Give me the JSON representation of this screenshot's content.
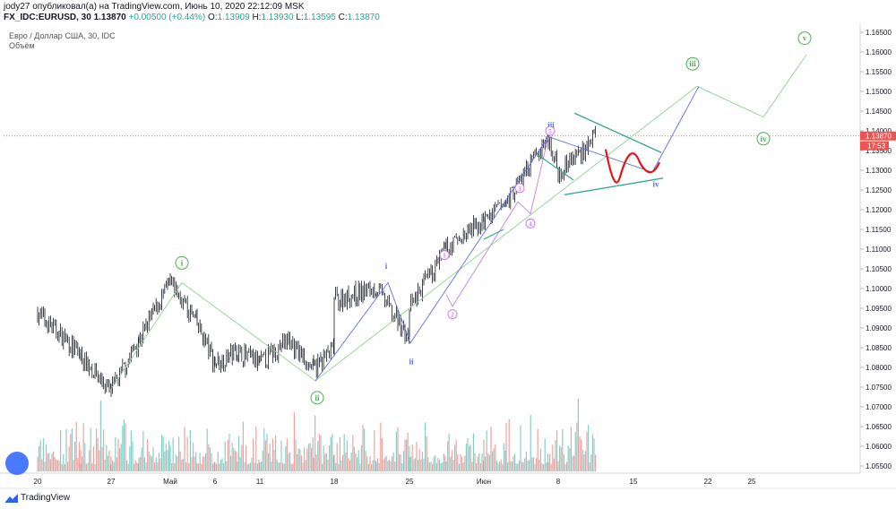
{
  "header": {
    "line1": "jody27 опубликовал(а) на TradingView.com, Июнь 10, 2020 22:12:09 MSK",
    "symbol": "FX_IDC:EURUSD, 30",
    "price": "1.13870",
    "change": "+0.00500 (+0.44%)",
    "o_label": "O:",
    "o_val": "1.13909",
    "h_label": "H:",
    "h_val": "1.13930",
    "l_label": "L:",
    "l_val": "1.13595",
    "c_label": "C:",
    "c_val": "1.13870"
  },
  "pane": {
    "title": "Евро / Доллар США, 30, IDC",
    "volume_label": "Объём"
  },
  "footer": {
    "brand": "TradingView"
  },
  "colors": {
    "up": "#26a69a",
    "down": "#ef5350",
    "candle": "#131722",
    "wave_green": "#8fd18f",
    "wave_blue": "#5a6ee0",
    "wave_purple": "#c77de8",
    "channel": "#3aa896",
    "forecast": "#e0161a",
    "price_line": "#e0561a"
  },
  "chart_data": {
    "type": "candlestick",
    "symbol": "EURUSD",
    "timeframe": "30",
    "y_axis": {
      "ticks": [
        "1.16500",
        "1.16000",
        "1.15500",
        "1.15000",
        "1.14500",
        "1.14000",
        "1.13500",
        "1.13000",
        "1.12500",
        "1.12000",
        "1.11500",
        "1.11000",
        "1.10500",
        "1.10000",
        "1.09500",
        "1.09000",
        "1.08500",
        "1.08000",
        "1.07500",
        "1.07000",
        "1.06500",
        "1.06000",
        "1.05500"
      ],
      "range": [
        1.0535,
        1.168
      ]
    },
    "x_axis": {
      "ticks": [
        "20",
        "27",
        "Май",
        "6",
        "11",
        "18",
        "25",
        "Июн",
        "8",
        "15",
        "22",
        "25"
      ]
    },
    "last_price": "1.13870",
    "countdown": "17:53",
    "price_path": [
      {
        "x": "20",
        "y": 1.094
      },
      {
        "x": "24",
        "y": 1.083
      },
      {
        "x": "27",
        "y": 1.074
      },
      {
        "x": "29",
        "y": 1.087
      },
      {
        "x": "Май",
        "y": 1.1015
      },
      {
        "x": "4",
        "y": 1.091
      },
      {
        "x": "6",
        "y": 1.081
      },
      {
        "x": "8",
        "y": 1.084
      },
      {
        "x": "11",
        "y": 1.081
      },
      {
        "x": "13",
        "y": 1.087
      },
      {
        "x": "15",
        "y": 1.0795
      },
      {
        "x": "18",
        "y": 1.085
      },
      {
        "x": "20",
        "y": 1.097
      },
      {
        "x": "22",
        "y": 1.1
      },
      {
        "x": "25",
        "y": 1.087
      },
      {
        "x": "27",
        "y": 1.095
      },
      {
        "x": "29",
        "y": 1.11
      },
      {
        "x": "Июн",
        "y": 1.117
      },
      {
        "x": "3",
        "y": 1.122
      },
      {
        "x": "5",
        "y": 1.1385
      },
      {
        "x": "8",
        "y": 1.1295
      },
      {
        "x": "10",
        "y": 1.1387
      }
    ],
    "wave_labels": [
      {
        "label": "i",
        "degree": "minor",
        "date": "Май"
      },
      {
        "label": "ii",
        "degree": "minor",
        "date": "15"
      },
      {
        "label": "iii",
        "degree": "minor",
        "date": "22",
        "projected": true
      },
      {
        "label": "iv",
        "degree": "minor",
        "date": "25",
        "projected": true
      },
      {
        "label": "v",
        "degree": "minor",
        "projected": true
      },
      {
        "label": "i",
        "degree": "minute",
        "date": "22"
      },
      {
        "label": "ii",
        "degree": "minute",
        "date": "25"
      },
      {
        "label": "iii",
        "degree": "minute",
        "date": "5"
      },
      {
        "label": "iv",
        "degree": "minute",
        "projected": true
      },
      {
        "label": "1",
        "degree": "minuette"
      },
      {
        "label": "2",
        "degree": "minuette"
      },
      {
        "label": "3",
        "degree": "minuette"
      },
      {
        "label": "4",
        "degree": "minuette"
      },
      {
        "label": "5",
        "degree": "minuette"
      }
    ]
  }
}
